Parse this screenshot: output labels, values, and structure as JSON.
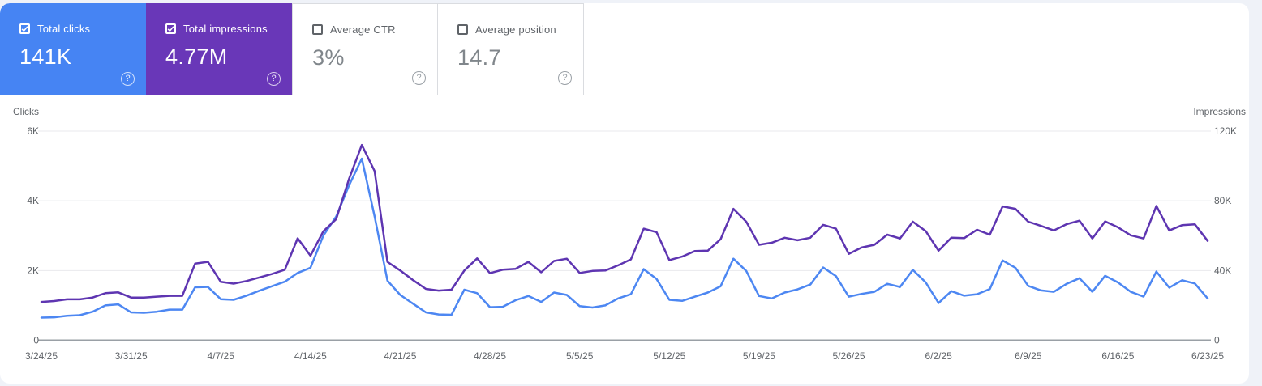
{
  "cards": [
    {
      "label": "Total clicks",
      "value": "141K",
      "checked": true,
      "bg": "#4684f3",
      "text_color": "#ffffff",
      "help_icon": "question-circle"
    },
    {
      "label": "Total impressions",
      "value": "4.77M",
      "checked": true,
      "bg": "#6937b8",
      "text_color": "#ffffff",
      "help_icon": "question-circle"
    },
    {
      "label": "Average CTR",
      "value": "3%",
      "checked": false,
      "bg": "#ffffff",
      "text_color": "#80868b",
      "help_icon": "question-circle"
    },
    {
      "label": "Average position",
      "value": "14.7",
      "checked": false,
      "bg": "#ffffff",
      "text_color": "#80868b",
      "help_icon": "question-circle"
    }
  ],
  "chart_data": {
    "type": "line",
    "grid": true,
    "left_axis": {
      "title": "Clicks",
      "ticks": [
        "0",
        "2K",
        "4K",
        "6K"
      ],
      "min": 0,
      "max": 6000
    },
    "right_axis": {
      "title": "Impressions",
      "ticks": [
        "0",
        "40K",
        "80K",
        "120K"
      ],
      "min": 0,
      "max": 120000
    },
    "x_tick_labels": [
      "3/24/25",
      "3/31/25",
      "4/7/25",
      "4/14/25",
      "4/21/25",
      "4/28/25",
      "5/5/25",
      "5/12/25",
      "5/19/25",
      "5/26/25",
      "6/2/25",
      "6/9/25",
      "6/16/25",
      "6/23/25"
    ],
    "x": [
      "3/24/25",
      "3/25/25",
      "3/26/25",
      "3/27/25",
      "3/28/25",
      "3/29/25",
      "3/30/25",
      "3/31/25",
      "4/1/25",
      "4/2/25",
      "4/3/25",
      "4/4/25",
      "4/5/25",
      "4/6/25",
      "4/7/25",
      "4/8/25",
      "4/9/25",
      "4/10/25",
      "4/11/25",
      "4/12/25",
      "4/13/25",
      "4/14/25",
      "4/15/25",
      "4/16/25",
      "4/17/25",
      "4/18/25",
      "4/19/25",
      "4/20/25",
      "4/21/25",
      "4/22/25",
      "4/23/25",
      "4/24/25",
      "4/25/25",
      "4/26/25",
      "4/27/25",
      "4/28/25",
      "4/29/25",
      "4/30/25",
      "5/1/25",
      "5/2/25",
      "5/3/25",
      "5/4/25",
      "5/5/25",
      "5/6/25",
      "5/7/25",
      "5/8/25",
      "5/9/25",
      "5/10/25",
      "5/11/25",
      "5/12/25",
      "5/13/25",
      "5/14/25",
      "5/15/25",
      "5/16/25",
      "5/17/25",
      "5/18/25",
      "5/19/25",
      "5/20/25",
      "5/21/25",
      "5/22/25",
      "5/23/25",
      "5/24/25",
      "5/25/25",
      "5/26/25",
      "5/27/25",
      "5/28/25",
      "5/29/25",
      "5/30/25",
      "5/31/25",
      "6/1/25",
      "6/2/25",
      "6/3/25",
      "6/4/25",
      "6/5/25",
      "6/6/25",
      "6/7/25",
      "6/8/25",
      "6/9/25",
      "6/10/25",
      "6/11/25",
      "6/12/25",
      "6/13/25",
      "6/14/25",
      "6/15/25",
      "6/16/25",
      "6/17/25",
      "6/18/25",
      "6/19/25",
      "6/20/25",
      "6/21/25",
      "6/22/25",
      "6/23/25"
    ],
    "series": [
      {
        "name": "Clicks",
        "axis": "left",
        "color": "#4d87f2",
        "values": [
          650,
          660,
          700,
          720,
          820,
          1000,
          1030,
          800,
          790,
          820,
          880,
          880,
          1520,
          1530,
          1180,
          1160,
          1280,
          1420,
          1550,
          1680,
          1930,
          2080,
          3000,
          3550,
          4440,
          5210,
          3550,
          1710,
          1300,
          1050,
          800,
          740,
          730,
          1450,
          1350,
          950,
          960,
          1150,
          1270,
          1100,
          1370,
          1300,
          980,
          940,
          1000,
          1200,
          1320,
          2040,
          1760,
          1160,
          1130,
          1250,
          1370,
          1550,
          2340,
          1990,
          1270,
          1200,
          1370,
          1460,
          1600,
          2090,
          1840,
          1250,
          1330,
          1390,
          1620,
          1530,
          2020,
          1660,
          1070,
          1410,
          1280,
          1320,
          1470,
          2290,
          2080,
          1560,
          1430,
          1390,
          1620,
          1780,
          1390,
          1850,
          1660,
          1390,
          1250,
          1970,
          1510,
          1720,
          1630,
          1200
        ]
      },
      {
        "name": "Impressions",
        "axis": "right",
        "color": "#5e35b1",
        "values": [
          22000,
          22500,
          23500,
          23500,
          24500,
          27000,
          27500,
          24500,
          24500,
          25000,
          25500,
          25500,
          44000,
          45000,
          33500,
          32500,
          34000,
          36000,
          38000,
          40500,
          58500,
          48500,
          62500,
          69500,
          92500,
          112000,
          97000,
          45000,
          40000,
          34500,
          29500,
          28500,
          29000,
          40000,
          47000,
          38500,
          40500,
          41000,
          45000,
          39000,
          45500,
          46800,
          38600,
          39800,
          40000,
          43000,
          46400,
          64000,
          62000,
          46000,
          48000,
          51200,
          51400,
          58000,
          75400,
          68000,
          54800,
          56000,
          58800,
          57400,
          58800,
          66200,
          64000,
          49600,
          53200,
          54800,
          60600,
          58400,
          68000,
          62600,
          51400,
          58800,
          58600,
          63400,
          60600,
          76800,
          75400,
          68000,
          65600,
          63000,
          66600,
          68600,
          58400,
          68200,
          64800,
          60200,
          58400,
          77000,
          63000,
          66000,
          66500,
          57000
        ]
      }
    ]
  }
}
